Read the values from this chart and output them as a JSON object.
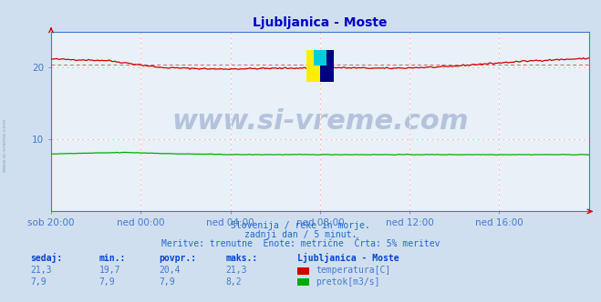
{
  "title": "Ljubljanica - Moste",
  "title_color": "#0000cc",
  "bg_color": "#d0dff0",
  "plot_bg_color": "#e8f0f8",
  "grid_color": "#ffffff",
  "grid_minor_color": "#ffaaaa",
  "watermark_text": "www.si-vreme.com",
  "watermark_color": "#1a3a8a",
  "subtitle1": "Slovenija / reke in morje.",
  "subtitle2": "zadnji dan / 5 minut.",
  "subtitle3": "Meritve: trenutne  Enote: metrične  Črta: 5% meritev",
  "subtitle_color": "#2266cc",
  "xlabels": [
    "sob 20:00",
    "ned 00:00",
    "ned 04:00",
    "ned 08:00",
    "ned 12:00",
    "ned 16:00"
  ],
  "xtick_positions": [
    0.0,
    0.1667,
    0.3333,
    0.5,
    0.6667,
    0.8333
  ],
  "ylim": [
    0,
    25
  ],
  "yticks": [
    10,
    20
  ],
  "legend_title": "Ljubljanica - Moste",
  "legend_items": [
    {
      "label": "temperatura[C]",
      "color": "#cc0000"
    },
    {
      "label": "pretok[m3/s]",
      "color": "#00aa00"
    }
  ],
  "stats_headers": [
    "sedaj:",
    "min.:",
    "povpr.:",
    "maks.:"
  ],
  "stats_temp": [
    "21,3",
    "19,7",
    "20,4",
    "21,3"
  ],
  "stats_flow": [
    "7,9",
    "7,9",
    "7,9",
    "8,2"
  ],
  "avg_line_value": 20.4,
  "avg_line_color": "#cc0000",
  "temp_color": "#cc0000",
  "flow_color": "#00aa00",
  "axis_color": "#4477cc",
  "tick_color": "#4477cc",
  "font_color": "#0044cc"
}
